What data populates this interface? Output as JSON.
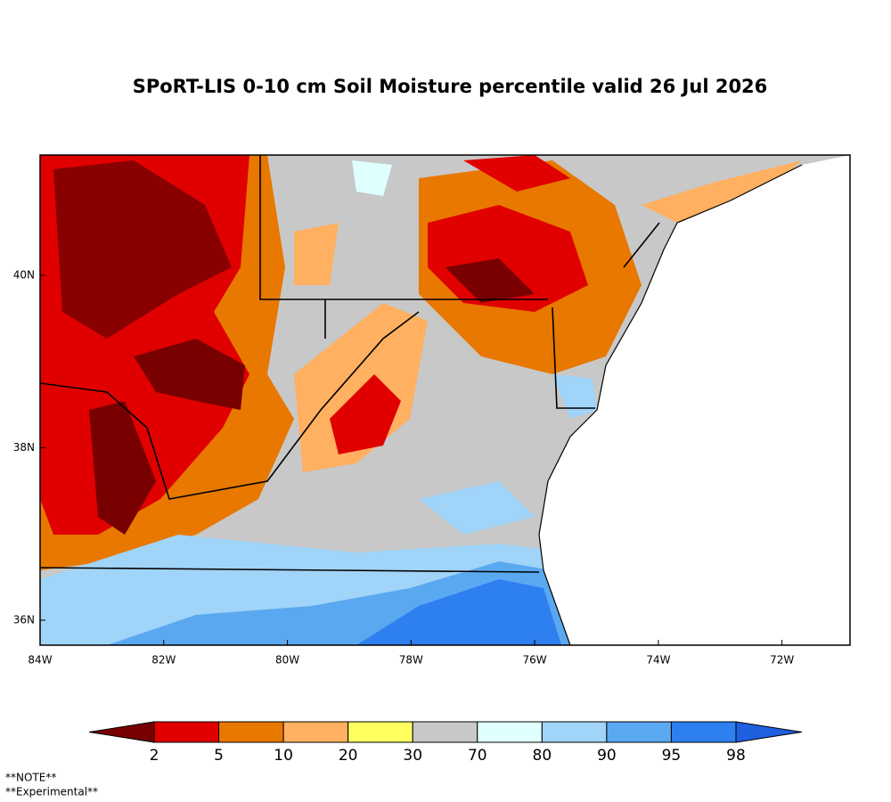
{
  "title": "SPoRT-LIS 0-10 cm Soil Moisture percentile valid 26 Jul 2026",
  "map": {
    "xlim": [
      -84,
      -70.9
    ],
    "ylim": [
      35.71,
      41.395
    ],
    "xticks": [
      {
        "value": -84,
        "label": "84W"
      },
      {
        "value": -82,
        "label": "82W"
      },
      {
        "value": -80,
        "label": "80W"
      },
      {
        "value": -78,
        "label": "78W"
      },
      {
        "value": -76,
        "label": "76W"
      },
      {
        "value": -74,
        "label": "74W"
      },
      {
        "value": -72,
        "label": "72W"
      }
    ],
    "yticks": [
      {
        "value": 36,
        "label": "36N"
      },
      {
        "value": 38,
        "label": "38N"
      },
      {
        "value": 40,
        "label": "40N"
      }
    ]
  },
  "colorbar": {
    "thresholds": [
      2,
      5,
      10,
      20,
      30,
      70,
      80,
      90,
      95,
      98
    ],
    "colors": [
      "#780000",
      "#e00000",
      "#e87800",
      "#ffb060",
      "#ffff60",
      "#c8c8c8",
      "#e0ffff",
      "#a0d4f8",
      "#5aa8f0",
      "#2e7ff0",
      "#1e60e0"
    ]
  },
  "notes": [
    "**NOTE**",
    "**Experimental**"
  ]
}
